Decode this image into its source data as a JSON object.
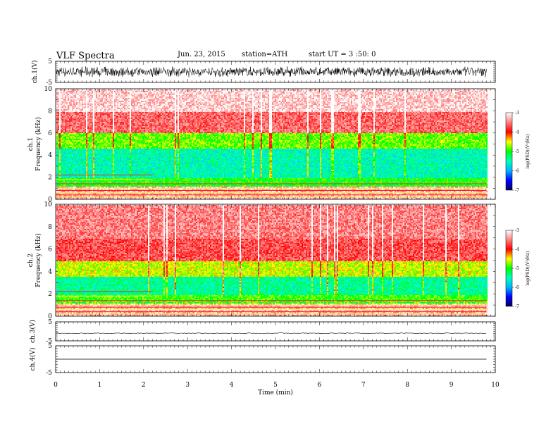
{
  "header": {
    "title": "VLF  Spectra",
    "date": "Jun. 23, 2015",
    "station": "station=ATH",
    "start": "start  UT  =   3  :50: 0"
  },
  "colors": {
    "trace": "#000000",
    "colormap": [
      "#000060",
      "#0000ff",
      "#00b4ff",
      "#00ffc0",
      "#00ff00",
      "#ffff00",
      "#ff0000",
      "#ff8080",
      "#ffffff"
    ]
  },
  "chart_data": [
    {
      "type": "line",
      "ylabel": "ch.1(V)",
      "ylim": [
        -5,
        5
      ],
      "yticks": [
        "5",
        "-5"
      ],
      "signal": "dense broadband waveform, amplitude about -2.5 to 2.5 V"
    },
    {
      "type": "heatmap",
      "ylabel": "ch.1\nFrequency  (kHz)",
      "ylim": [
        0,
        10
      ],
      "yticks": [
        "0",
        "2",
        "4",
        "6",
        "8",
        "10"
      ],
      "colorbar": {
        "label": "log(PSD)(V²/Hz)",
        "range": [
          -7,
          -3
        ],
        "ticks": [
          "-3",
          "-4",
          "-5",
          "-6",
          "-7"
        ]
      },
      "bands_khz": [
        {
          "from": 0.0,
          "to": 1.2,
          "level": -3.3
        },
        {
          "from": 1.2,
          "to": 2.0,
          "level": -5.0
        },
        {
          "from": 2.0,
          "to": 4.6,
          "level": -5.5
        },
        {
          "from": 4.6,
          "to": 6.0,
          "level": -4.8
        },
        {
          "from": 6.0,
          "to": 8.0,
          "level": -3.6
        },
        {
          "from": 8.0,
          "to": 10.0,
          "level": -3.2
        }
      ],
      "data_end_min": 9.8
    },
    {
      "type": "heatmap",
      "ylabel": "ch.2\nFrequency  (kHz)",
      "ylim": [
        0,
        10
      ],
      "yticks": [
        "0",
        "2",
        "4",
        "6",
        "8",
        "10"
      ],
      "colorbar": {
        "label": "log(PSD)(V²/Hz)",
        "range": [
          -7,
          -3
        ],
        "ticks": [
          "-3",
          "-4",
          "-5",
          "-6",
          "-7"
        ]
      },
      "bands_khz": [
        {
          "from": 0.0,
          "to": 1.2,
          "level": -3.3
        },
        {
          "from": 1.2,
          "to": 2.0,
          "level": -4.9
        },
        {
          "from": 2.0,
          "to": 3.6,
          "level": -5.4
        },
        {
          "from": 3.6,
          "to": 5.0,
          "level": -4.6
        },
        {
          "from": 5.0,
          "to": 7.0,
          "level": -3.7
        },
        {
          "from": 7.0,
          "to": 10.0,
          "level": -3.5
        }
      ],
      "data_end_min": 9.8
    },
    {
      "type": "line",
      "ylabel": "ch.3(V)",
      "ylim": [
        -5,
        5
      ],
      "yticks": [
        "5",
        "-5"
      ],
      "signal": "nearly flat trace near -1 V"
    },
    {
      "type": "line",
      "ylabel": "ch.4(V)",
      "ylim": [
        -5,
        5
      ],
      "yticks": [
        "5",
        "-5"
      ],
      "signal": "flat trace near 0 V"
    }
  ],
  "xaxis": {
    "xlabel": "Time  (min)",
    "xlim": [
      0,
      10
    ],
    "ticks": [
      "0",
      "1",
      "2",
      "3",
      "4",
      "5",
      "6",
      "7",
      "8",
      "9",
      "10"
    ]
  }
}
